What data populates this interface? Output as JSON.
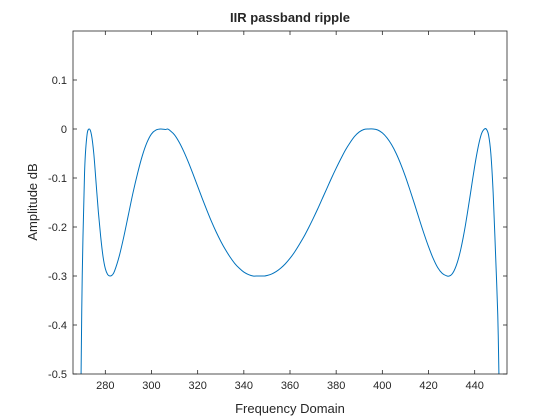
{
  "chart_data": {
    "type": "line",
    "title": "IIR passband ripple",
    "xlabel": "Frequency Domain",
    "ylabel": "Amplitude dB",
    "xlim": [
      266,
      454
    ],
    "ylim": [
      -0.5,
      0.2
    ],
    "xticks": [
      280,
      300,
      320,
      340,
      360,
      380,
      400,
      420,
      440
    ],
    "yticks": [
      -0.5,
      -0.4,
      -0.3,
      -0.2,
      -0.1,
      0,
      0.1
    ],
    "ytick_labels": [
      "-0.5",
      "-0.4",
      "-0.3",
      "-0.2",
      "-0.1",
      "0",
      "0.1"
    ],
    "grid": false,
    "series": [
      {
        "color": "#0072BD",
        "x": [
          269.5,
          270,
          271,
          272,
          273,
          274,
          275,
          276,
          277,
          278,
          279,
          280,
          281,
          282,
          283,
          284,
          286,
          288,
          290,
          292,
          294,
          296,
          298,
          300,
          302,
          304,
          306,
          307,
          308,
          310,
          312,
          314,
          316,
          318,
          320,
          322,
          324,
          326,
          328,
          330,
          332,
          334,
          336,
          338,
          340,
          342,
          344,
          346,
          348,
          349,
          350,
          352,
          354,
          356,
          358,
          360,
          362,
          364,
          366,
          368,
          370,
          372,
          374,
          376,
          378,
          380,
          382,
          384,
          386,
          388,
          390,
          392,
          394,
          396,
          398,
          400,
          402,
          404,
          406,
          408,
          410,
          412,
          414,
          416,
          418,
          420,
          422,
          424,
          426,
          428,
          429,
          430,
          431,
          432,
          433,
          434,
          435,
          436,
          437,
          438,
          439,
          440,
          441,
          442,
          443,
          444,
          445,
          446,
          447,
          448,
          449,
          450,
          450.5
        ],
        "y": [
          -0.5,
          -0.3,
          -0.09,
          -0.015,
          0.0,
          -0.012,
          -0.05,
          -0.11,
          -0.17,
          -0.22,
          -0.26,
          -0.285,
          -0.297,
          -0.3,
          -0.298,
          -0.29,
          -0.26,
          -0.22,
          -0.175,
          -0.13,
          -0.09,
          -0.055,
          -0.028,
          -0.01,
          -0.002,
          0.0,
          -0.001,
          0.0,
          -0.003,
          -0.012,
          -0.027,
          -0.046,
          -0.068,
          -0.092,
          -0.117,
          -0.142,
          -0.166,
          -0.189,
          -0.21,
          -0.229,
          -0.246,
          -0.261,
          -0.274,
          -0.284,
          -0.292,
          -0.297,
          -0.3,
          -0.3,
          -0.3,
          -0.3,
          -0.299,
          -0.296,
          -0.291,
          -0.284,
          -0.275,
          -0.264,
          -0.251,
          -0.236,
          -0.22,
          -0.202,
          -0.183,
          -0.163,
          -0.142,
          -0.121,
          -0.1,
          -0.08,
          -0.061,
          -0.043,
          -0.028,
          -0.015,
          -0.006,
          -0.001,
          0.0,
          0.0,
          -0.002,
          -0.008,
          -0.018,
          -0.032,
          -0.05,
          -0.072,
          -0.097,
          -0.125,
          -0.154,
          -0.184,
          -0.213,
          -0.24,
          -0.264,
          -0.283,
          -0.295,
          -0.3,
          -0.3,
          -0.297,
          -0.29,
          -0.279,
          -0.264,
          -0.245,
          -0.222,
          -0.196,
          -0.167,
          -0.137,
          -0.106,
          -0.076,
          -0.049,
          -0.026,
          -0.009,
          -0.001,
          0.0,
          -0.012,
          -0.05,
          -0.13,
          -0.25,
          -0.38,
          -0.5
        ]
      }
    ]
  }
}
